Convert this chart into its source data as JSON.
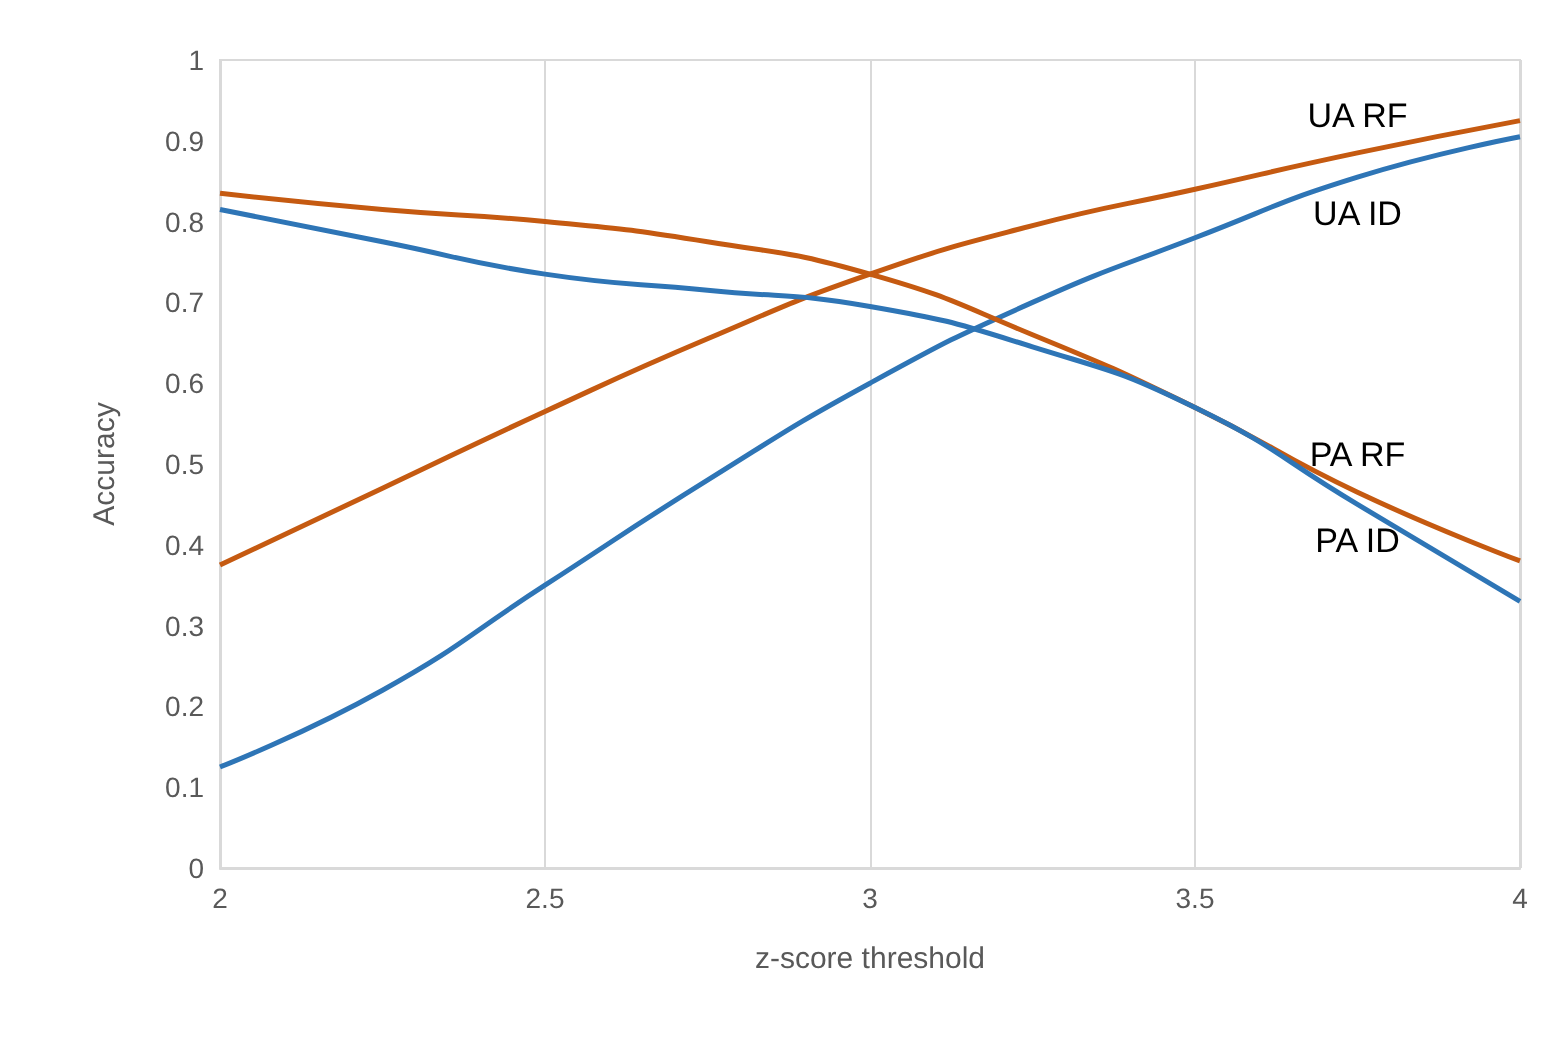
{
  "chart_data": {
    "type": "line",
    "xlabel": "z-score threshold",
    "ylabel": "Accuracy",
    "x": [
      2,
      2.25,
      2.5,
      2.75,
      3,
      3.25,
      3.5,
      3.75,
      4
    ],
    "series": [
      {
        "name": "UA RF",
        "color": "#c55a11",
        "values": [
          0.375,
          0.47,
          0.565,
          0.655,
          0.735,
          0.795,
          0.84,
          0.885,
          0.925
        ]
      },
      {
        "name": "UA ID",
        "color": "#2e75b6",
        "values": [
          0.125,
          0.22,
          0.35,
          0.48,
          0.6,
          0.7,
          0.78,
          0.855,
          0.905
        ]
      },
      {
        "name": "PA RF",
        "color": "#c55a11",
        "values": [
          0.835,
          0.815,
          0.8,
          0.775,
          0.735,
          0.66,
          0.57,
          0.465,
          0.38
        ]
      },
      {
        "name": "PA ID",
        "color": "#2e75b6",
        "values": [
          0.815,
          0.775,
          0.735,
          0.715,
          0.695,
          0.645,
          0.57,
          0.45,
          0.33
        ]
      }
    ],
    "xlim": [
      2,
      4
    ],
    "xticks": [
      2,
      2.5,
      3,
      3.5,
      4
    ],
    "ylim": [
      0,
      1
    ],
    "yticks": [
      0,
      0.1,
      0.2,
      0.3,
      0.4,
      0.5,
      0.6,
      0.7,
      0.8,
      0.9,
      1
    ],
    "grid": "x",
    "legend": false,
    "marker": "none",
    "line_style": "solid"
  }
}
